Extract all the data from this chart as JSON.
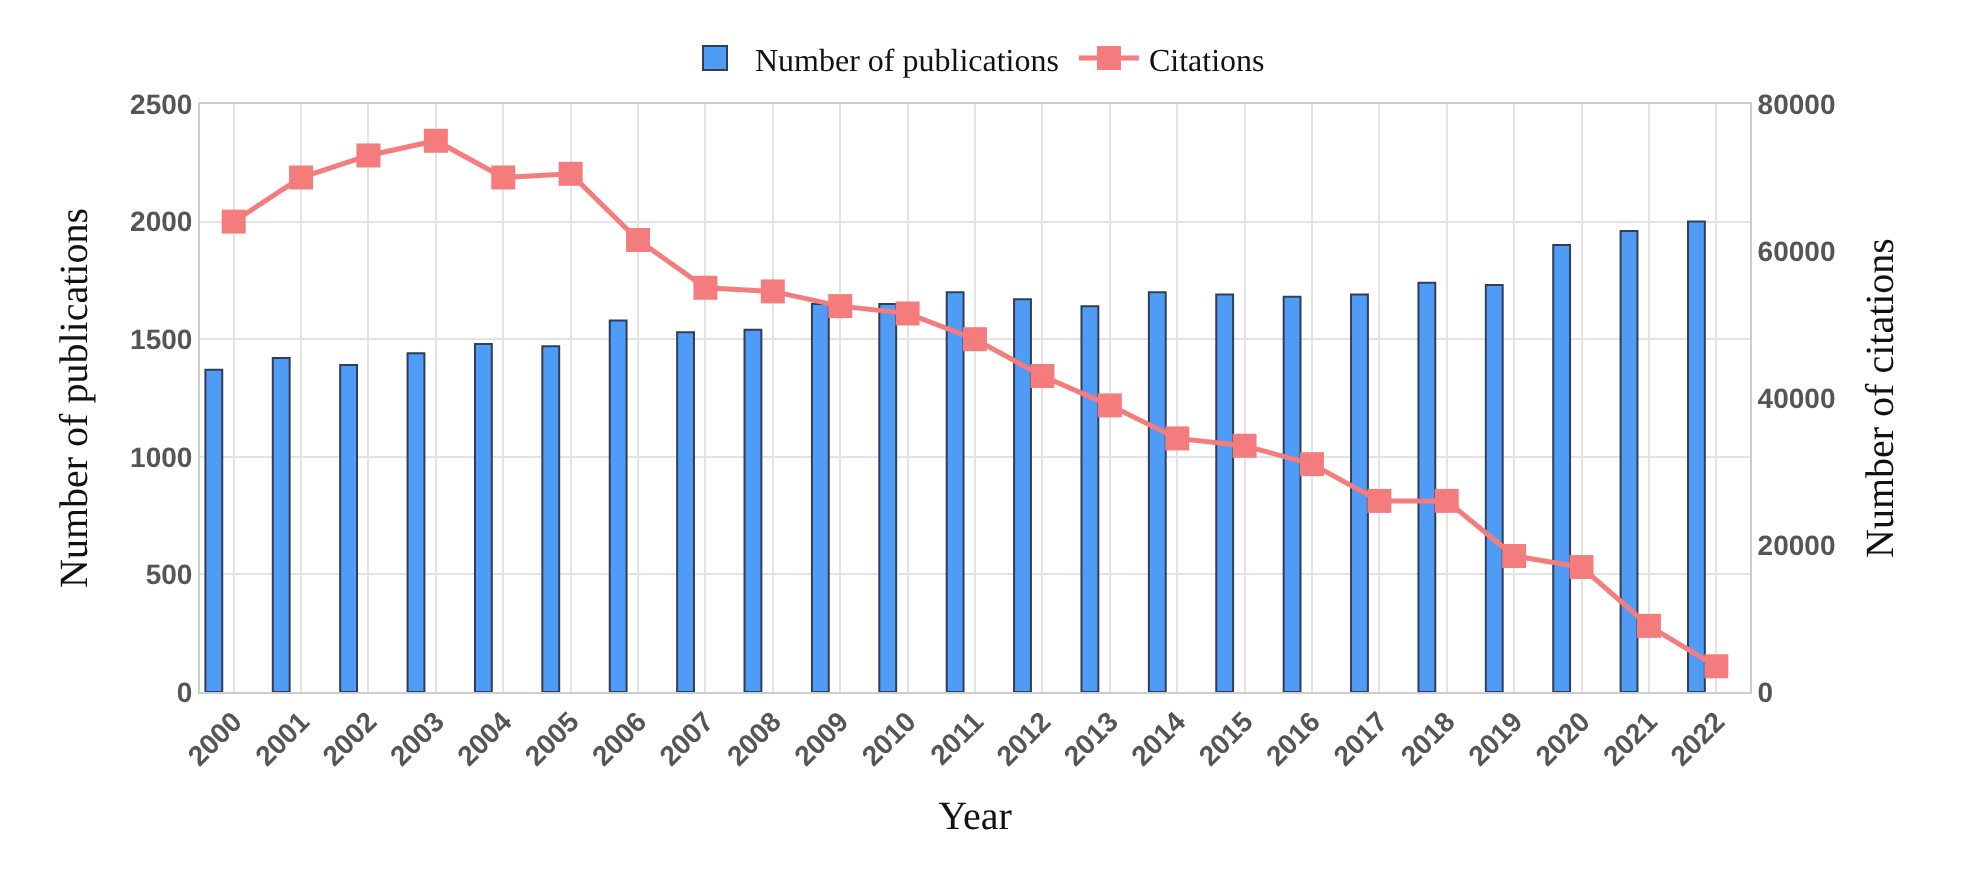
{
  "chart_data": {
    "type": "bar",
    "xlabel": "Year",
    "ylabel": "Number of publications",
    "y2label": "Number of citations",
    "categories": [
      "2000",
      "2001",
      "2002",
      "2003",
      "2004",
      "2005",
      "2006",
      "2007",
      "2008",
      "2009",
      "2010",
      "2011",
      "2012",
      "2013",
      "2014",
      "2015",
      "2016",
      "2017",
      "2018",
      "2019",
      "2020",
      "2021",
      "2022"
    ],
    "series": [
      {
        "name": "Number of publications",
        "color": "#4f9cf7",
        "values": [
          1370,
          1420,
          1390,
          1440,
          1480,
          1470,
          1580,
          1530,
          1540,
          1650,
          1650,
          1700,
          1670,
          1640,
          1700,
          1690,
          1680,
          1690,
          1740,
          1730,
          1900,
          1960,
          2000
        ]
      },
      {
        "name": "Citations",
        "type": "line",
        "axis": "y2",
        "color": "#f47c7c",
        "marker": "square",
        "values": [
          64000,
          70000,
          73000,
          75000,
          70000,
          70500,
          61500,
          55000,
          54500,
          52500,
          51500,
          48000,
          43000,
          39000,
          34500,
          33500,
          31000,
          26000,
          26000,
          18500,
          17000,
          9000,
          3500
        ]
      }
    ],
    "ylim": [
      0,
      2500
    ],
    "yticks": [
      0,
      500,
      1000,
      1500,
      2000,
      2500
    ],
    "y2lim": [
      0,
      80000
    ],
    "y2ticks": [
      0,
      20000,
      40000,
      60000,
      80000
    ],
    "grid": true,
    "legend": "top"
  }
}
